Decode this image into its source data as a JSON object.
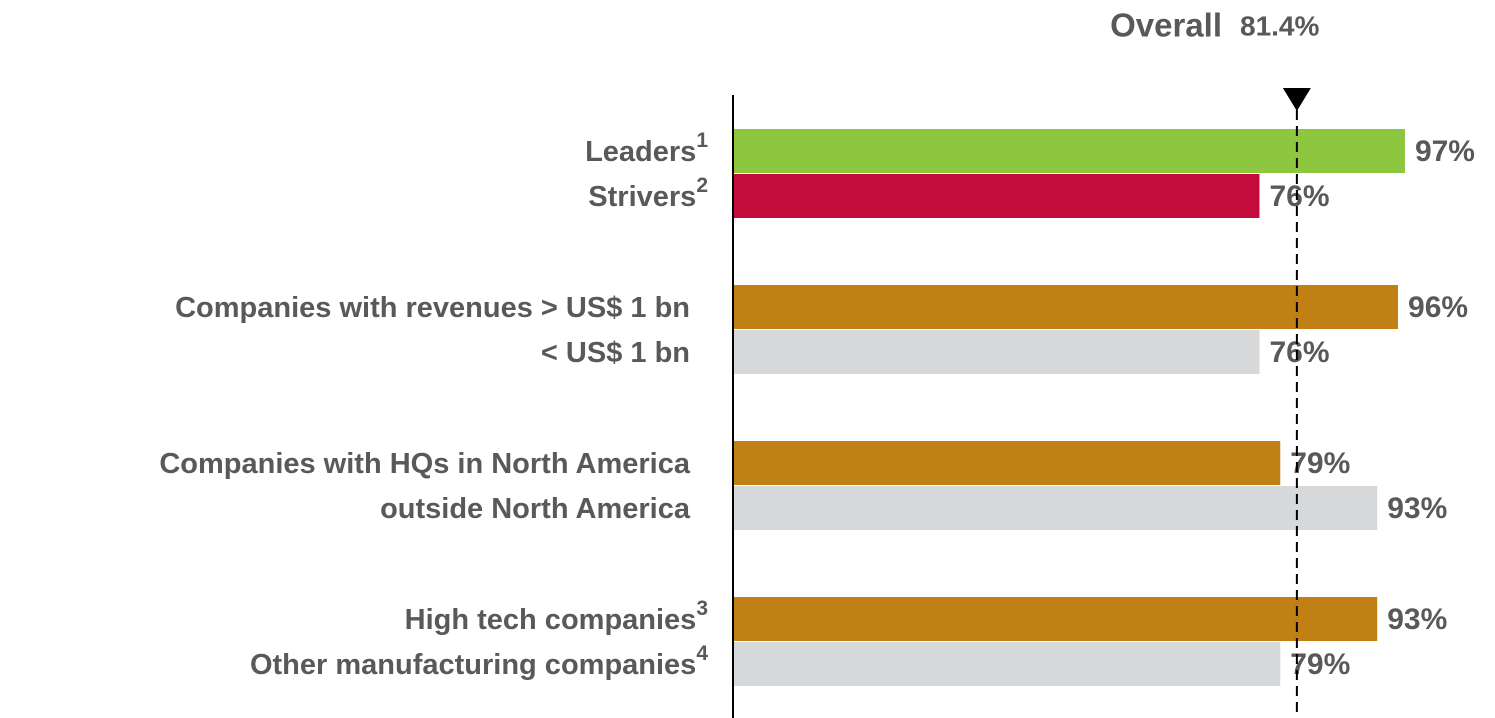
{
  "chart_data": {
    "type": "hbar",
    "categories": [
      "Leaders",
      "Strivers",
      "Companies with revenues > US$ 1 bn",
      "< US$ 1 bn",
      "Companies with HQs in North America",
      "outside North America",
      "High tech companies",
      "Other manufacturing companies"
    ],
    "category_notes": [
      "1",
      "2",
      null,
      null,
      null,
      null,
      "3",
      "4"
    ],
    "values": [
      97,
      76,
      96,
      76,
      79,
      93,
      93,
      79
    ],
    "value_labels": [
      "97%",
      "76%",
      "96%",
      "76%",
      "79%",
      "93%",
      "93%",
      "79%"
    ],
    "colors": [
      "#8dc63f",
      "#c40c3c",
      "#c08015",
      "#d7d8da",
      "#c08015",
      "#d7d8da",
      "#c08015",
      "#d7d8da"
    ],
    "xlim": [
      0,
      110
    ],
    "reference": {
      "label": "Overall",
      "value": 81.4,
      "value_label": "81.4%"
    }
  }
}
